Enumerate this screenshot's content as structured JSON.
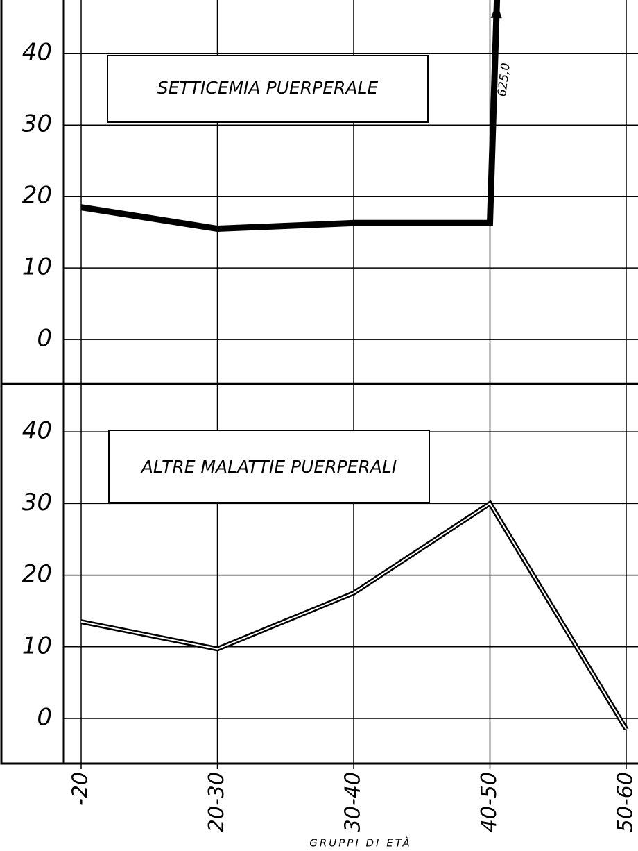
{
  "chart_data": [
    {
      "type": "line",
      "title": "SETTICEMIA PUERPERALE",
      "color": "#000000",
      "values": [
        18.5,
        15.5,
        16.3,
        16.3,
        625.0
      ],
      "value_labels": [
        null,
        null,
        null,
        null,
        "625,0"
      ],
      "ylim": [
        -6.2,
        47.5
      ],
      "yticks": [
        0,
        10,
        20,
        30,
        40
      ],
      "grid": true
    },
    {
      "type": "double-line",
      "title": "ALTRE MALATTIE PUERPERALI",
      "color": "#000000",
      "categories": [
        "-20",
        "20-30",
        "30-40",
        "40-50",
        "50-60"
      ],
      "xlabel": "GRUPPI DI ETÀ",
      "values": [
        13.5,
        9.7,
        17.5,
        30.0,
        -1.5
      ],
      "ylim": [
        -6.3,
        46.7
      ],
      "yticks": [
        0,
        10,
        20,
        30,
        40
      ],
      "grid": true
    }
  ]
}
